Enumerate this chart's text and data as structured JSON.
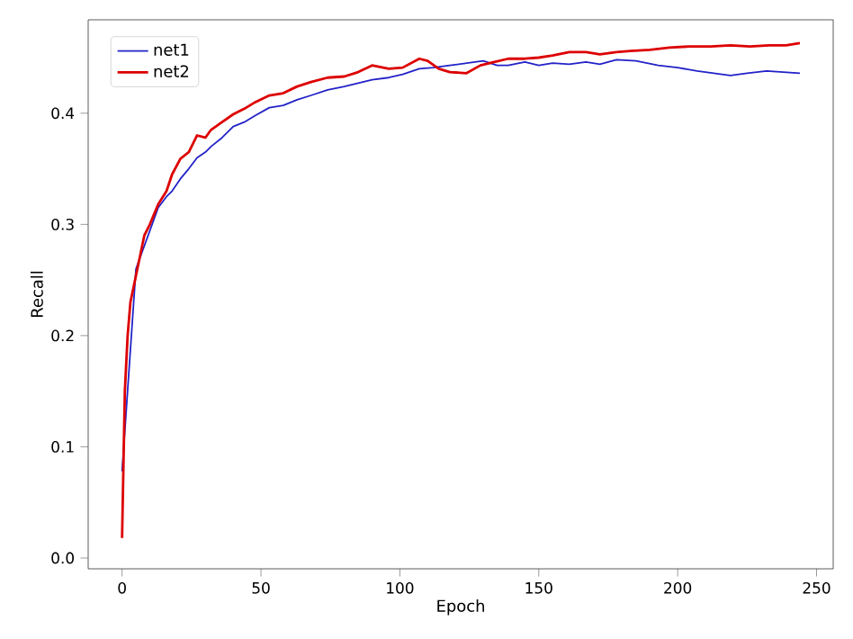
{
  "chart_data": {
    "type": "line",
    "xlabel": "Epoch",
    "ylabel": "Recall",
    "xlim": [
      -12.2,
      256
    ],
    "ylim": [
      -0.0097,
      0.484
    ],
    "xticks": [
      0,
      50,
      100,
      150,
      200,
      250
    ],
    "yticks": [
      {
        "value": 0,
        "label": "0.0"
      },
      {
        "value": 0.1,
        "label": "0.1"
      },
      {
        "value": 0.2,
        "label": "0.2"
      },
      {
        "value": 0.3,
        "label": "0.3"
      },
      {
        "value": 0.4,
        "label": "0.4"
      }
    ],
    "legend": "top left",
    "grid": false,
    "marker": "none",
    "line_style": "solid",
    "series": [
      {
        "name": "net1",
        "color": "#2222c8",
        "x": [
          0,
          5,
          13,
          16,
          18,
          21,
          24,
          27,
          30,
          32,
          36,
          40,
          44,
          48,
          53,
          58,
          63,
          68,
          74,
          80,
          85,
          90,
          96,
          101,
          107,
          112,
          118,
          124,
          130,
          135,
          139,
          145,
          150,
          155,
          161,
          167,
          172,
          178,
          185,
          193,
          200,
          207,
          213,
          219,
          225,
          232,
          238,
          244
        ],
        "values": [
          0.078,
          0.26,
          0.315,
          0.325,
          0.33,
          0.341,
          0.35,
          0.36,
          0.365,
          0.37,
          0.378,
          0.388,
          0.392,
          0.398,
          0.405,
          0.407,
          0.412,
          0.416,
          0.421,
          0.424,
          0.427,
          0.43,
          0.432,
          0.435,
          0.44,
          0.441,
          0.443,
          0.445,
          0.447,
          0.443,
          0.443,
          0.446,
          0.443,
          0.445,
          0.444,
          0.446,
          0.444,
          0.448,
          0.447,
          0.443,
          0.441,
          0.438,
          0.436,
          0.434,
          0.436,
          0.438,
          0.437,
          0.436
        ]
      },
      {
        "name": "net2",
        "color": "#dd0000",
        "x": [
          0,
          1,
          2,
          3,
          5,
          8,
          10,
          13,
          16,
          18,
          21,
          24,
          27,
          30,
          32,
          36,
          40,
          44,
          48,
          53,
          58,
          63,
          68,
          74,
          80,
          85,
          90,
          96,
          101,
          107,
          110,
          114,
          118,
          124,
          129,
          134,
          139,
          145,
          150,
          155,
          161,
          167,
          172,
          178,
          183,
          190,
          197,
          204,
          212,
          219,
          226,
          233,
          239,
          244
        ],
        "values": [
          0.018,
          0.15,
          0.2,
          0.23,
          0.254,
          0.29,
          0.3,
          0.318,
          0.33,
          0.345,
          0.359,
          0.365,
          0.38,
          0.378,
          0.385,
          0.392,
          0.399,
          0.404,
          0.41,
          0.416,
          0.418,
          0.424,
          0.428,
          0.432,
          0.433,
          0.437,
          0.443,
          0.44,
          0.441,
          0.449,
          0.447,
          0.44,
          0.437,
          0.436,
          0.443,
          0.446,
          0.449,
          0.449,
          0.45,
          0.452,
          0.455,
          0.455,
          0.453,
          0.455,
          0.456,
          0.457,
          0.459,
          0.46,
          0.46,
          0.461,
          0.46,
          0.461,
          0.461,
          0.463
        ]
      }
    ]
  }
}
